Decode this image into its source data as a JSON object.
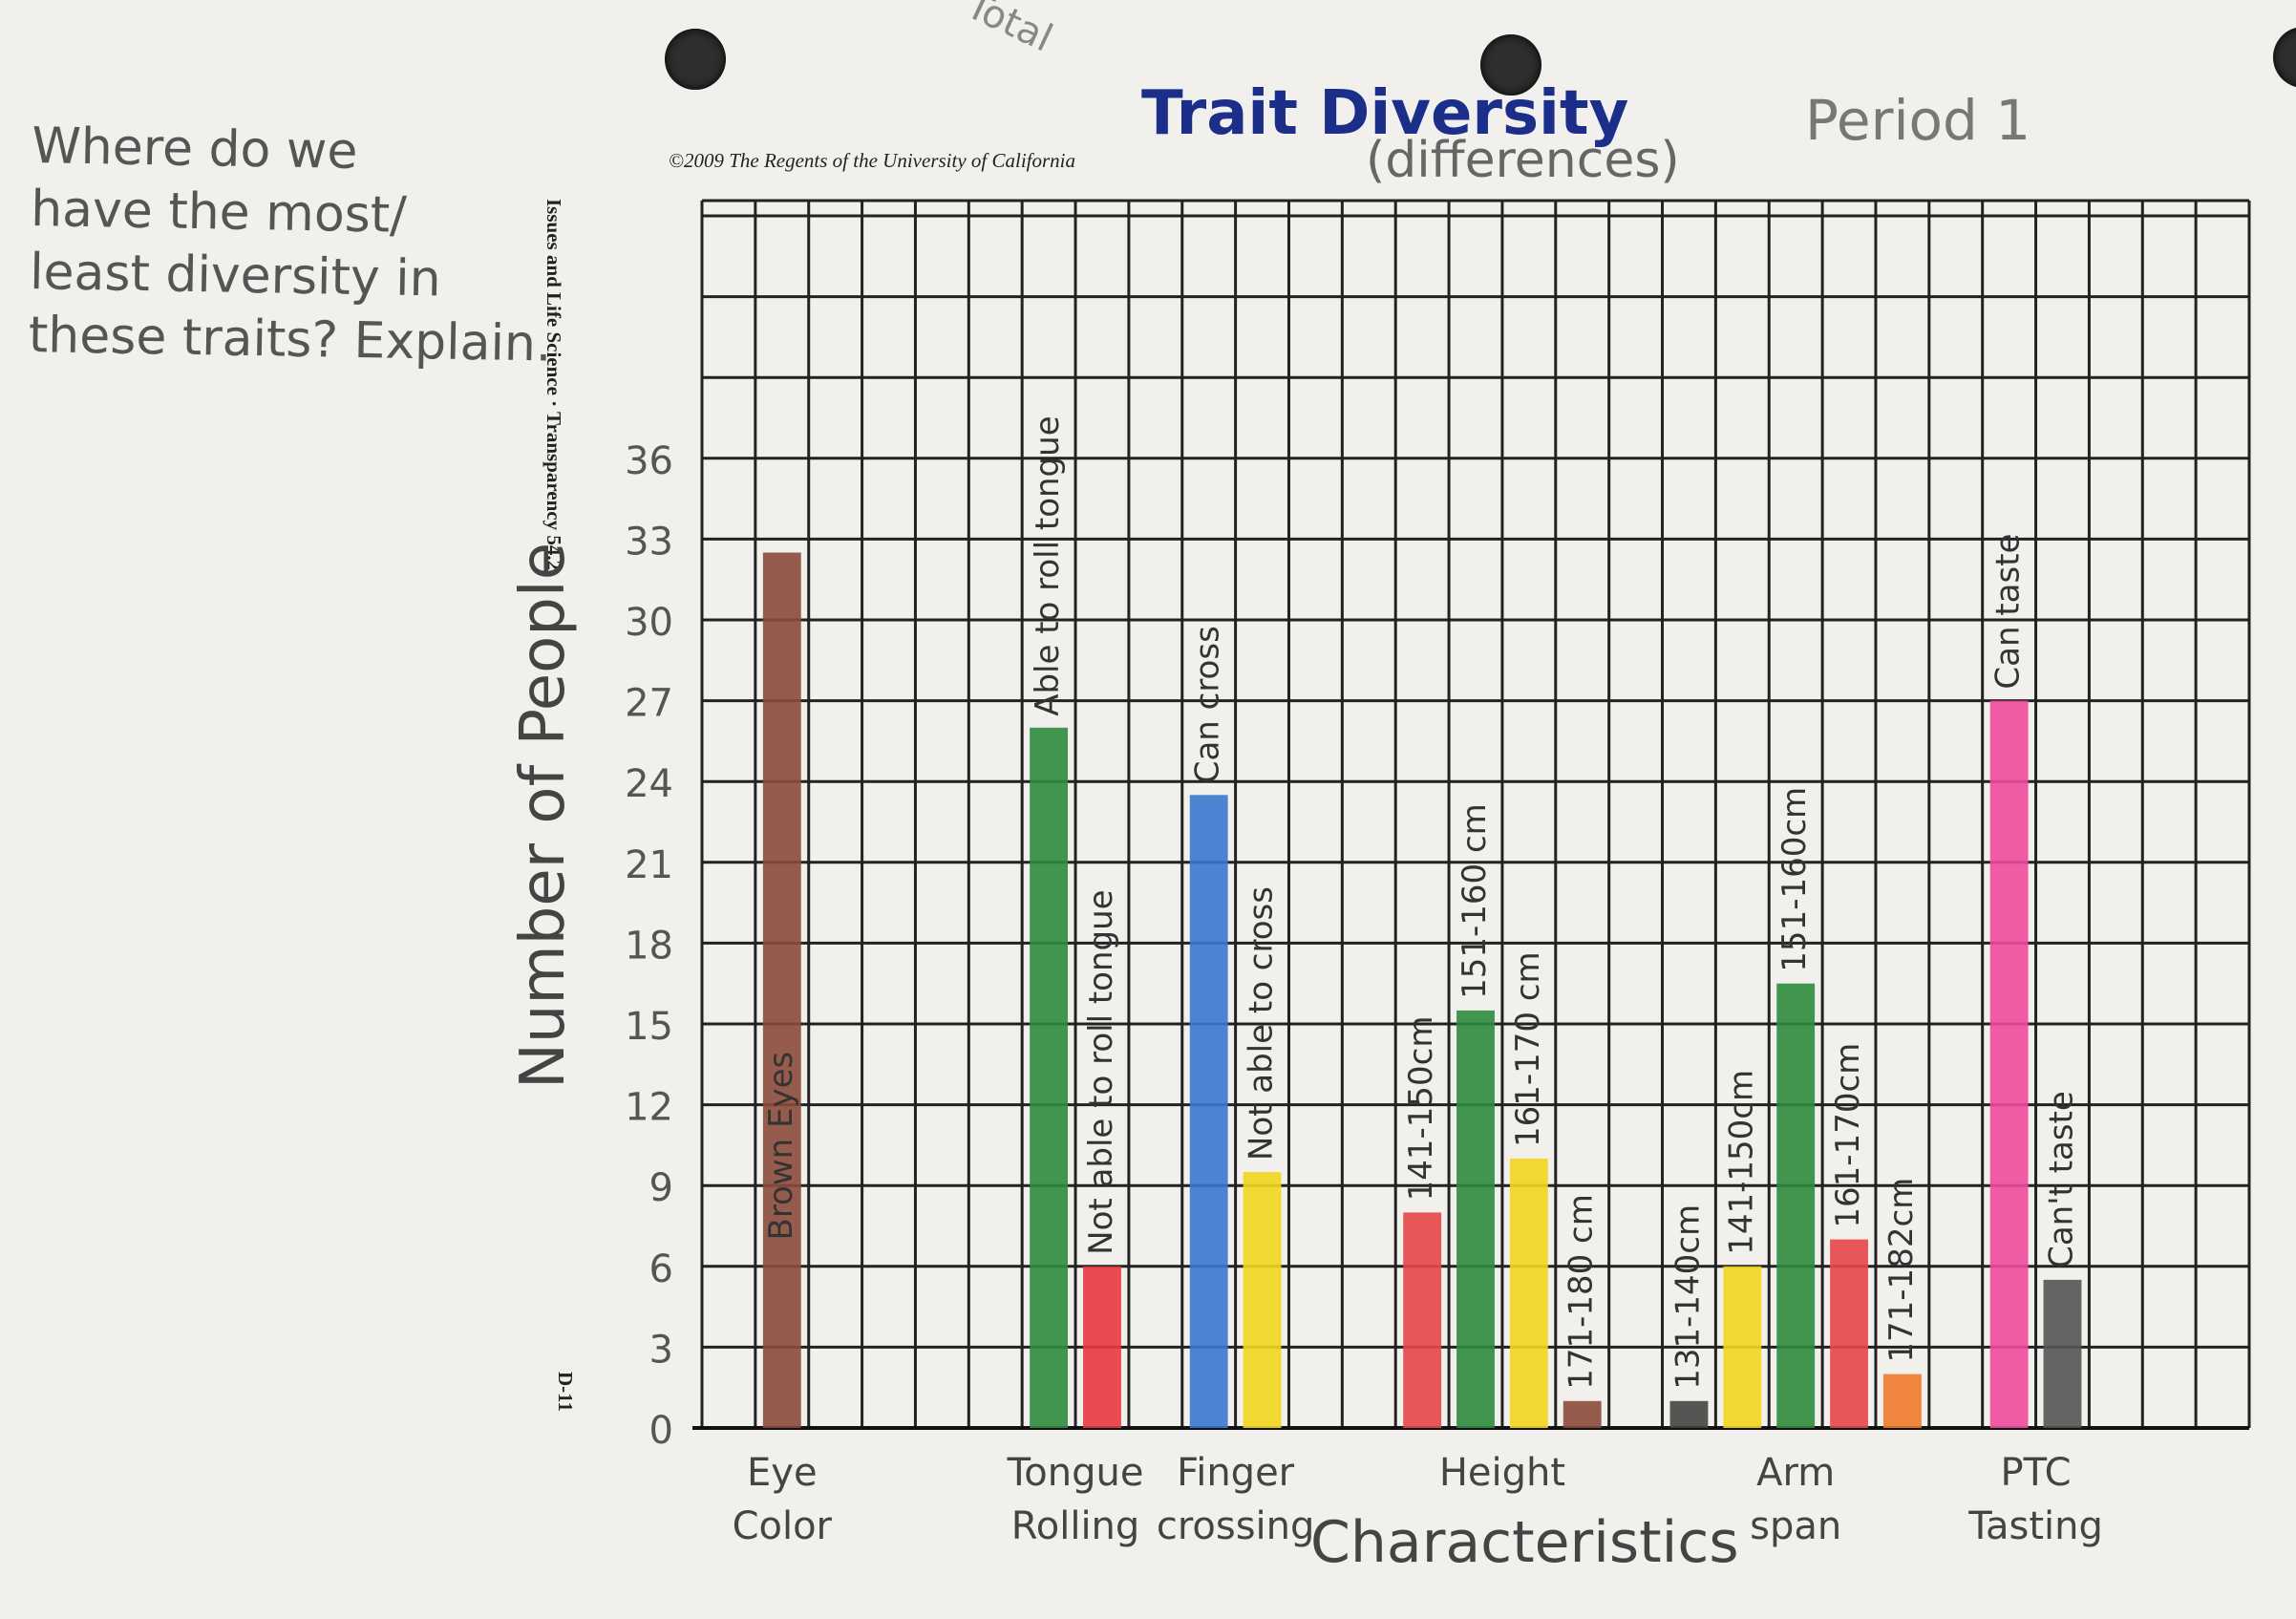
{
  "page": {
    "question_lines": [
      "Where do we",
      "have the most/",
      "least diversity in",
      "these traits? Explain."
    ],
    "title": "Trait Diversity",
    "subtitle": "(differences)",
    "period": "Period 1",
    "copyright": "©2009 The Regents of the University of California",
    "side_text": "Issues and Life Science · Transparency 54.2",
    "side_code": "D-11",
    "top_margin_note": "Total"
  },
  "chart_data": {
    "type": "bar",
    "title": "Trait Diversity",
    "subtitle": "(differences)",
    "ylabel": "Number of People",
    "xlabel": "Characteristics",
    "ylim": [
      0,
      36
    ],
    "yticks": [
      0,
      3,
      6,
      9,
      12,
      15,
      18,
      21,
      24,
      27,
      30,
      33,
      36
    ],
    "grid": true,
    "groups": [
      {
        "category": "Eye Color",
        "bars": [
          {
            "label": "Brown Eyes",
            "value": 32.5,
            "color": "#8b4a3c"
          }
        ]
      },
      {
        "category": "Tongue Rolling",
        "bars": [
          {
            "label": "Able to roll tongue",
            "value": 26,
            "color": "#2e8b3e"
          },
          {
            "label": "Not able to roll tongue",
            "value": 6,
            "color": "#e8393f"
          }
        ]
      },
      {
        "category": "Finger crossing",
        "bars": [
          {
            "label": "Can cross",
            "value": 23.5,
            "color": "#3a78cf"
          },
          {
            "label": "Not able to cross",
            "value": 9.5,
            "color": "#f2d61e"
          }
        ]
      },
      {
        "category": "Height",
        "bars": [
          {
            "label": "141-150cm",
            "value": 8,
            "color": "#e8454a"
          },
          {
            "label": "151-160 cm",
            "value": 15.5,
            "color": "#2e8b3e"
          },
          {
            "label": "161-170 cm",
            "value": 10,
            "color": "#f2d61e"
          },
          {
            "label": "171-180 cm",
            "value": 1,
            "color": "#8b4a3c"
          }
        ]
      },
      {
        "category": "Arm span",
        "bars": [
          {
            "label": "131-140cm",
            "value": 1,
            "color": "#444444"
          },
          {
            "label": "141-150cm",
            "value": 6,
            "color": "#f2d61e"
          },
          {
            "label": "151-160cm",
            "value": 16.5,
            "color": "#2e8b3e"
          },
          {
            "label": "161-170cm",
            "value": 7,
            "color": "#e8454a"
          },
          {
            "label": "171-182cm",
            "value": 2,
            "color": "#f07a2a"
          }
        ]
      },
      {
        "category": "PTC Tasting",
        "bars": [
          {
            "label": "Can taste",
            "value": 27,
            "color": "#f04a9c"
          },
          {
            "label": "Can't taste",
            "value": 5.5,
            "color": "#555555"
          }
        ]
      }
    ]
  }
}
